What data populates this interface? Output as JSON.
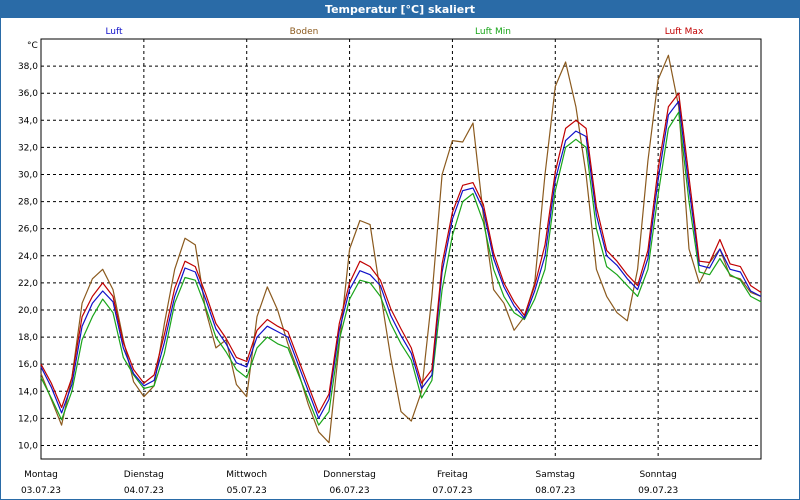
{
  "chart_data": {
    "type": "line",
    "title": "Temperatur [°C] skaliert",
    "ylabel": "°C",
    "ylim": [
      9,
      40
    ],
    "yticks": [
      "10,0",
      "12,0",
      "14,0",
      "16,0",
      "18,0",
      "20,0",
      "22,0",
      "24,0",
      "26,0",
      "28,0",
      "30,0",
      "32,0",
      "34,0",
      "36,0",
      "38,0"
    ],
    "ytick_values": [
      10,
      12,
      14,
      16,
      18,
      20,
      22,
      24,
      26,
      28,
      30,
      32,
      34,
      36,
      38
    ],
    "days": [
      {
        "weekday": "Montag",
        "date": "03.07.23"
      },
      {
        "weekday": "Dienstag",
        "date": "04.07.23"
      },
      {
        "weekday": "Mittwoch",
        "date": "05.07.23"
      },
      {
        "weekday": "Donnerstag",
        "date": "06.07.23"
      },
      {
        "weekday": "Freitag",
        "date": "07.07.23"
      },
      {
        "weekday": "Samstag",
        "date": "08.07.23"
      },
      {
        "weekday": "Sonntag",
        "date": "09.07.23"
      }
    ],
    "x_range_days": [
      0,
      7
    ],
    "grid": true,
    "colors": {
      "luft": "#1010c8",
      "boden": "#8b5a1e",
      "luft_min": "#1aa51a",
      "luft_max": "#c00000"
    },
    "series": [
      {
        "key": "luft",
        "name": "Luft",
        "x": [
          0,
          0.1,
          0.2,
          0.3,
          0.4,
          0.5,
          0.6,
          0.7,
          0.8,
          0.9,
          1.0,
          1.1,
          1.2,
          1.3,
          1.4,
          1.5,
          1.6,
          1.7,
          1.8,
          1.9,
          2.0,
          2.1,
          2.2,
          2.3,
          2.4,
          2.5,
          2.6,
          2.7,
          2.8,
          2.9,
          3.0,
          3.1,
          3.2,
          3.3,
          3.4,
          3.5,
          3.6,
          3.7,
          3.8,
          3.9,
          4.0,
          4.1,
          4.2,
          4.3,
          4.4,
          4.5,
          4.6,
          4.7,
          4.8,
          4.9,
          5.0,
          5.1,
          5.2,
          5.3,
          5.4,
          5.5,
          5.6,
          5.7,
          5.8,
          5.9,
          6.0,
          6.1,
          6.2,
          6.3,
          6.4,
          6.5,
          6.6,
          6.7,
          6.8,
          6.9,
          7.0
        ],
        "values": [
          15.8,
          14.3,
          12.4,
          14.5,
          18.8,
          20.5,
          21.4,
          20.6,
          17.2,
          15.3,
          14.4,
          14.8,
          17.6,
          21.0,
          23.1,
          22.8,
          20.8,
          18.6,
          17.5,
          16.1,
          15.8,
          18.0,
          18.8,
          18.4,
          18.0,
          16.0,
          14.0,
          12.0,
          13.4,
          18.5,
          21.5,
          22.9,
          22.6,
          21.8,
          19.6,
          18.1,
          16.8,
          14.2,
          15.2,
          22.8,
          26.7,
          28.8,
          29.0,
          27.4,
          23.8,
          21.7,
          20.3,
          19.4,
          21.4,
          24.0,
          29.6,
          32.5,
          33.2,
          32.8,
          27.0,
          24.0,
          23.3,
          22.3,
          21.5,
          23.8,
          29.6,
          34.4,
          35.4,
          29.0,
          23.3,
          23.1,
          24.5,
          23.0,
          22.8,
          21.4,
          21.0
        ]
      },
      {
        "key": "boden",
        "name": "Boden",
        "x": [
          0,
          0.1,
          0.2,
          0.3,
          0.4,
          0.5,
          0.6,
          0.7,
          0.8,
          0.9,
          1.0,
          1.1,
          1.2,
          1.3,
          1.4,
          1.5,
          1.6,
          1.7,
          1.8,
          1.9,
          2.0,
          2.1,
          2.2,
          2.3,
          2.4,
          2.5,
          2.6,
          2.7,
          2.8,
          2.9,
          3.0,
          3.1,
          3.2,
          3.3,
          3.4,
          3.5,
          3.6,
          3.7,
          3.8,
          3.9,
          4.0,
          4.1,
          4.2,
          4.3,
          4.4,
          4.5,
          4.6,
          4.7,
          4.8,
          4.9,
          5.0,
          5.1,
          5.2,
          5.3,
          5.4,
          5.5,
          5.6,
          5.7,
          5.8,
          5.9,
          6.0,
          6.1,
          6.2,
          6.3,
          6.4,
          6.5,
          6.6,
          6.7,
          6.8,
          6.9,
          7.0
        ],
        "values": [
          15.3,
          13.4,
          11.5,
          15.0,
          20.5,
          22.3,
          23.0,
          21.5,
          17.8,
          14.7,
          13.6,
          14.4,
          19.0,
          23.0,
          25.3,
          24.8,
          20.0,
          17.2,
          17.8,
          14.5,
          13.6,
          19.5,
          21.7,
          20.0,
          17.5,
          15.5,
          13.0,
          11.0,
          10.2,
          17.5,
          24.5,
          26.6,
          26.3,
          21.3,
          16.5,
          12.5,
          11.8,
          14.0,
          21.0,
          30.0,
          32.5,
          32.4,
          33.8,
          27.0,
          21.5,
          20.5,
          18.5,
          19.5,
          22.0,
          30.0,
          36.5,
          38.3,
          35.0,
          30.0,
          23.0,
          21.0,
          19.8,
          19.2,
          23.0,
          31.0,
          37.0,
          38.8,
          35.0,
          24.5,
          22.0,
          23.5,
          24.5,
          22.5,
          22.3,
          21.3,
          21.0
        ]
      },
      {
        "key": "luft_min",
        "name": "Luft Min",
        "x": [
          0,
          0.1,
          0.2,
          0.3,
          0.4,
          0.5,
          0.6,
          0.7,
          0.8,
          0.9,
          1.0,
          1.1,
          1.2,
          1.3,
          1.4,
          1.5,
          1.6,
          1.7,
          1.8,
          1.9,
          2.0,
          2.1,
          2.2,
          2.3,
          2.4,
          2.5,
          2.6,
          2.7,
          2.8,
          2.9,
          3.0,
          3.1,
          3.2,
          3.3,
          3.4,
          3.5,
          3.6,
          3.7,
          3.8,
          3.9,
          4.0,
          4.1,
          4.2,
          4.3,
          4.4,
          4.5,
          4.6,
          4.7,
          4.8,
          4.9,
          5.0,
          5.1,
          5.2,
          5.3,
          5.4,
          5.5,
          5.6,
          5.7,
          5.8,
          5.9,
          6.0,
          6.1,
          6.2,
          6.3,
          6.4,
          6.5,
          6.6,
          6.7,
          6.8,
          6.9,
          7.0
        ],
        "values": [
          15.0,
          13.5,
          11.9,
          14.0,
          17.8,
          19.5,
          20.8,
          19.8,
          16.5,
          15.2,
          14.2,
          14.4,
          16.8,
          20.5,
          22.4,
          22.2,
          20.2,
          18.0,
          16.9,
          15.6,
          15.0,
          17.2,
          18.0,
          17.5,
          17.2,
          15.3,
          13.4,
          11.5,
          12.5,
          17.8,
          20.8,
          22.2,
          22.0,
          21.0,
          19.0,
          17.5,
          16.3,
          13.5,
          14.8,
          21.5,
          25.5,
          28.0,
          28.6,
          26.5,
          23.0,
          21.0,
          19.8,
          19.3,
          20.8,
          23.0,
          28.8,
          32.0,
          32.6,
          32.0,
          26.0,
          23.2,
          22.6,
          21.8,
          21.0,
          23.0,
          28.5,
          33.4,
          34.6,
          28.0,
          22.8,
          22.6,
          23.8,
          22.6,
          22.2,
          21.0,
          20.6
        ]
      },
      {
        "key": "luft_max",
        "name": "Luft Max",
        "x": [
          0,
          0.1,
          0.2,
          0.3,
          0.4,
          0.5,
          0.6,
          0.7,
          0.8,
          0.9,
          1.0,
          1.1,
          1.2,
          1.3,
          1.4,
          1.5,
          1.6,
          1.7,
          1.8,
          1.9,
          2.0,
          2.1,
          2.2,
          2.3,
          2.4,
          2.5,
          2.6,
          2.7,
          2.8,
          2.9,
          3.0,
          3.1,
          3.2,
          3.3,
          3.4,
          3.5,
          3.6,
          3.7,
          3.8,
          3.9,
          4.0,
          4.1,
          4.2,
          4.3,
          4.4,
          4.5,
          4.6,
          4.7,
          4.8,
          4.9,
          5.0,
          5.1,
          5.2,
          5.3,
          5.4,
          5.5,
          5.6,
          5.7,
          5.8,
          5.9,
          6.0,
          6.1,
          6.2,
          6.3,
          6.4,
          6.5,
          6.6,
          6.7,
          6.8,
          6.9,
          7.0
        ],
        "values": [
          16.0,
          14.6,
          12.8,
          15.0,
          19.5,
          21.0,
          22.0,
          21.0,
          17.6,
          15.6,
          14.6,
          15.2,
          18.2,
          21.6,
          23.6,
          23.2,
          21.2,
          19.0,
          17.9,
          16.5,
          16.2,
          18.5,
          19.3,
          18.8,
          18.4,
          16.4,
          14.4,
          12.4,
          13.8,
          19.0,
          22.0,
          23.6,
          23.2,
          22.2,
          20.1,
          18.6,
          17.2,
          14.6,
          15.6,
          23.4,
          27.2,
          29.2,
          29.4,
          27.8,
          24.2,
          22.0,
          20.6,
          19.6,
          21.8,
          24.8,
          30.2,
          33.4,
          34.0,
          33.4,
          27.6,
          24.4,
          23.6,
          22.6,
          21.8,
          24.4,
          30.4,
          35.0,
          36.0,
          29.8,
          23.6,
          23.5,
          25.2,
          23.4,
          23.2,
          21.8,
          21.3
        ]
      }
    ]
  }
}
